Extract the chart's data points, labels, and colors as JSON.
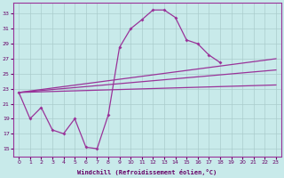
{
  "xlabel": "Windchill (Refroidissement éolien,°C)",
  "color": "#993399",
  "bg_color": "#c8eaea",
  "grid_color": "#aacccc",
  "bell_x": [
    0,
    1,
    2,
    3,
    4,
    5,
    6,
    7,
    8,
    9,
    10,
    11,
    12,
    13,
    14,
    15,
    16,
    17,
    18
  ],
  "bell_y": [
    22.5,
    19.0,
    20.5,
    17.5,
    17.0,
    19.0,
    15.2,
    15.0,
    19.5,
    28.5,
    31.0,
    32.2,
    33.5,
    33.5,
    32.5,
    29.5,
    29.0,
    27.5,
    26.5
  ],
  "diag_lines": [
    [
      22.5,
      23.5
    ],
    [
      22.5,
      25.5
    ],
    [
      22.5,
      27.0
    ]
  ],
  "ylim": [
    14.0,
    34.5
  ],
  "yticks": [
    15,
    17,
    19,
    21,
    23,
    25,
    27,
    29,
    31,
    33
  ],
  "xticks": [
    0,
    1,
    2,
    3,
    4,
    5,
    6,
    7,
    8,
    9,
    10,
    11,
    12,
    13,
    14,
    15,
    16,
    17,
    18,
    19,
    20,
    21,
    22,
    23
  ],
  "xlim": [
    -0.5,
    23.5
  ]
}
